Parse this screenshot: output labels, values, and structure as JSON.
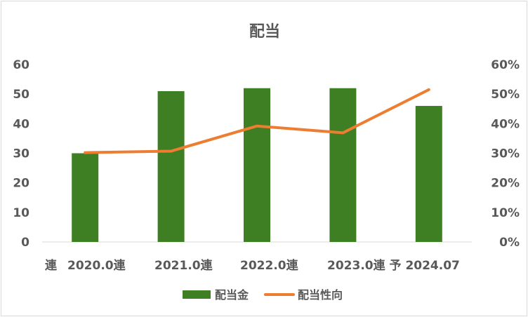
{
  "chart_data": {
    "type": "bar",
    "title": "配当",
    "categories": [
      "連",
      "2020.0連",
      "2021.0連",
      "2022.0連",
      "2023.0連 予 2024.07"
    ],
    "bar_positions": [
      1,
      2,
      3,
      4,
      5
    ],
    "series": [
      {
        "name": "配当金",
        "type": "bar",
        "axis": "left",
        "color": "#3f7f24",
        "values": [
          30,
          51,
          52,
          52,
          46
        ]
      },
      {
        "name": "配当性向",
        "type": "line",
        "axis": "right",
        "color": "#ed7d31",
        "values": [
          30.2,
          30.7,
          39.2,
          36.9,
          51.5
        ]
      }
    ],
    "y_left": {
      "ylim": [
        0,
        60
      ],
      "ticks": [
        "0",
        "10",
        "20",
        "30",
        "40",
        "50",
        "60"
      ]
    },
    "y_right": {
      "ylim": [
        0,
        60
      ],
      "ticks": [
        "0%",
        "10%",
        "20%",
        "30%",
        "40%",
        "50%",
        "60%"
      ]
    },
    "grid": false,
    "legend_position": "bottom"
  }
}
